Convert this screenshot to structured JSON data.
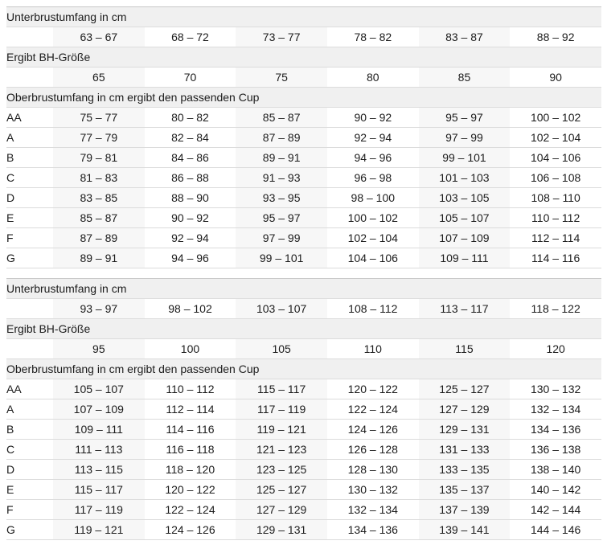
{
  "colors": {
    "section_header_bg": "#f0f0f0",
    "alt_column_bg": "#f7f7f7",
    "row_border": "#dcdcdc",
    "table_top_border": "#c9c9c9",
    "text": "#1c1c1c",
    "page_bg": "#ffffff"
  },
  "tables": [
    {
      "underbust_label": "Unterbrustumfang in cm",
      "underbust_ranges": [
        "63 – 67",
        "68 – 72",
        "73 – 77",
        "78 – 82",
        "83 – 87",
        "88 – 92"
      ],
      "band_label": "Ergibt BH-Größe",
      "band_sizes": [
        "65",
        "70",
        "75",
        "80",
        "85",
        "90"
      ],
      "cup_label": "Oberbrustumfang in cm ergibt den passenden Cup",
      "cup_rows": [
        {
          "cup": "AA",
          "ranges": [
            "75 – 77",
            "80 – 82",
            "85 – 87",
            "90 – 92",
            "95 – 97",
            "100 – 102"
          ]
        },
        {
          "cup": "A",
          "ranges": [
            "77 – 79",
            "82 – 84",
            "87 – 89",
            "92 – 94",
            "97 – 99",
            "102 – 104"
          ]
        },
        {
          "cup": "B",
          "ranges": [
            "79 – 81",
            "84 – 86",
            "89 – 91",
            "94 – 96",
            "99 – 101",
            "104 – 106"
          ]
        },
        {
          "cup": "C",
          "ranges": [
            "81 – 83",
            "86 – 88",
            "91 – 93",
            "96 – 98",
            "101 – 103",
            "106 – 108"
          ]
        },
        {
          "cup": "D",
          "ranges": [
            "83 – 85",
            "88 – 90",
            "93 – 95",
            "98 – 100",
            "103 – 105",
            "108 – 110"
          ]
        },
        {
          "cup": "E",
          "ranges": [
            "85 – 87",
            "90 – 92",
            "95 – 97",
            "100 – 102",
            "105 – 107",
            "110 – 112"
          ]
        },
        {
          "cup": "F",
          "ranges": [
            "87 – 89",
            "92 – 94",
            "97 – 99",
            "102 – 104",
            "107 – 109",
            "112 – 114"
          ]
        },
        {
          "cup": "G",
          "ranges": [
            "89 – 91",
            "94 – 96",
            "99 – 101",
            "104 – 106",
            "109 – 111",
            "114 – 116"
          ]
        }
      ]
    },
    {
      "underbust_label": "Unterbrustumfang in cm",
      "underbust_ranges": [
        "93 – 97",
        "98 – 102",
        "103 – 107",
        "108 – 112",
        "113 – 117",
        "118 – 122"
      ],
      "band_label": "Ergibt BH-Größe",
      "band_sizes": [
        "95",
        "100",
        "105",
        "110",
        "115",
        "120"
      ],
      "cup_label": "Oberbrustumfang in cm ergibt den passenden Cup",
      "cup_rows": [
        {
          "cup": "AA",
          "ranges": [
            "105 – 107",
            "110 – 112",
            "115 – 117",
            "120 – 122",
            "125 – 127",
            "130 – 132"
          ]
        },
        {
          "cup": "A",
          "ranges": [
            "107 – 109",
            "112 – 114",
            "117 – 119",
            "122 – 124",
            "127 – 129",
            "132 – 134"
          ]
        },
        {
          "cup": "B",
          "ranges": [
            "109 – 111",
            "114 – 116",
            "119 – 121",
            "124 – 126",
            "129 – 131",
            "134 – 136"
          ]
        },
        {
          "cup": "C",
          "ranges": [
            "111 – 113",
            "116 – 118",
            "121 – 123",
            "126 – 128",
            "131 – 133",
            "136 – 138"
          ]
        },
        {
          "cup": "D",
          "ranges": [
            "113 – 115",
            "118 – 120",
            "123 – 125",
            "128 – 130",
            "133 – 135",
            "138 – 140"
          ]
        },
        {
          "cup": "E",
          "ranges": [
            "115 – 117",
            "120 – 122",
            "125 – 127",
            "130 – 132",
            "135 – 137",
            "140 – 142"
          ]
        },
        {
          "cup": "F",
          "ranges": [
            "117 – 119",
            "122 – 124",
            "127 – 129",
            "132 – 134",
            "137 – 139",
            "142 – 144"
          ]
        },
        {
          "cup": "G",
          "ranges": [
            "119 – 121",
            "124 – 126",
            "129 – 131",
            "134 – 136",
            "139 – 141",
            "144 – 146"
          ]
        }
      ]
    }
  ]
}
